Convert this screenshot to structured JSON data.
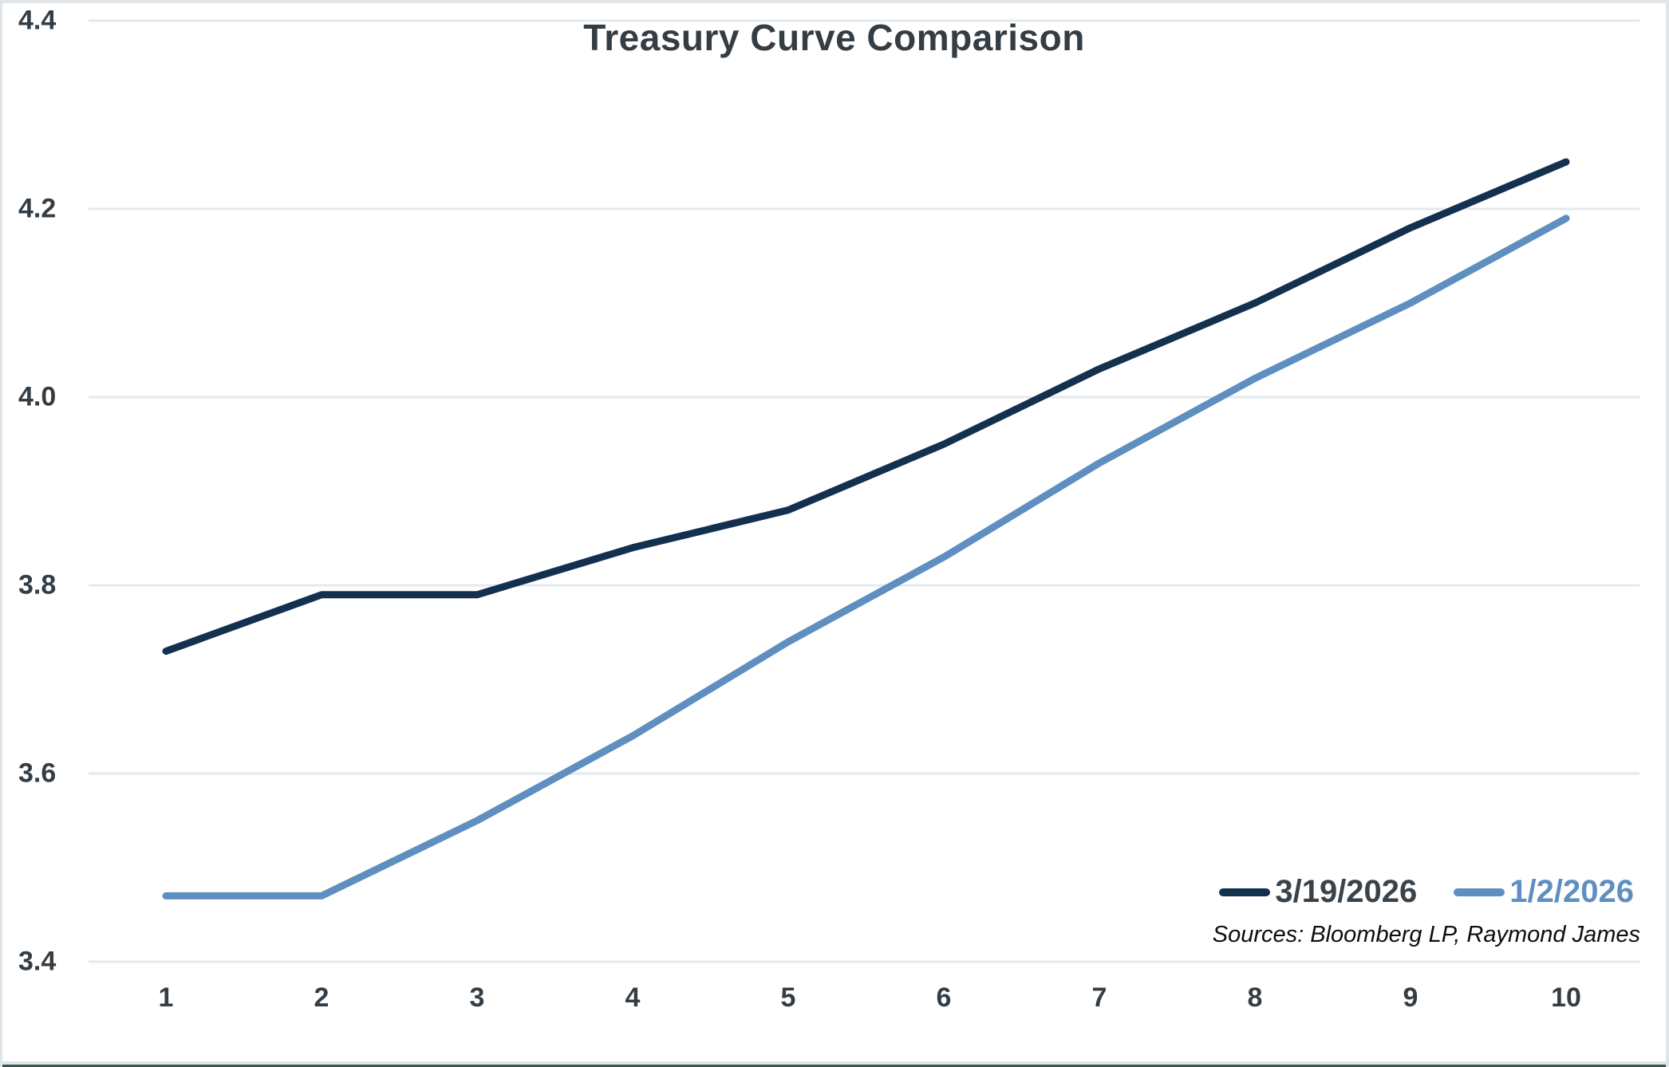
{
  "chart_data": {
    "type": "line",
    "title": "Treasury Curve Comparison",
    "x": [
      1,
      2,
      3,
      4,
      5,
      6,
      7,
      8,
      9,
      10
    ],
    "x_tick_labels": [
      "1",
      "2",
      "3",
      "4",
      "5",
      "6",
      "7",
      "8",
      "9",
      "10"
    ],
    "y_tick_labels": [
      "3.4",
      "3.6",
      "3.8",
      "4.0",
      "4.2",
      "4.4"
    ],
    "y_ticks": [
      3.4,
      3.6,
      3.8,
      4.0,
      4.2,
      4.4
    ],
    "ylim": [
      3.4,
      4.4
    ],
    "grid": "horizontal-only",
    "legend_position": "inside-bottom-right",
    "series": [
      {
        "name": "3/19/2026",
        "color": "#14304f",
        "values": [
          3.73,
          3.79,
          3.79,
          3.84,
          3.88,
          3.95,
          4.03,
          4.1,
          4.18,
          4.25
        ]
      },
      {
        "name": "1/2/2026",
        "color": "#5e8fc0",
        "values": [
          3.47,
          3.47,
          3.55,
          3.64,
          3.74,
          3.83,
          3.93,
          4.02,
          4.1,
          4.19
        ]
      }
    ],
    "source_note": "Sources: Bloomberg LP, Raymond James"
  },
  "colors": {
    "title_text": "#343d44",
    "tick_text": "#343d44",
    "gridline": "#e4eaed",
    "frame_border": "#dfe5e8",
    "bottom_accent": "#3a564d",
    "background": "#ffffff"
  }
}
